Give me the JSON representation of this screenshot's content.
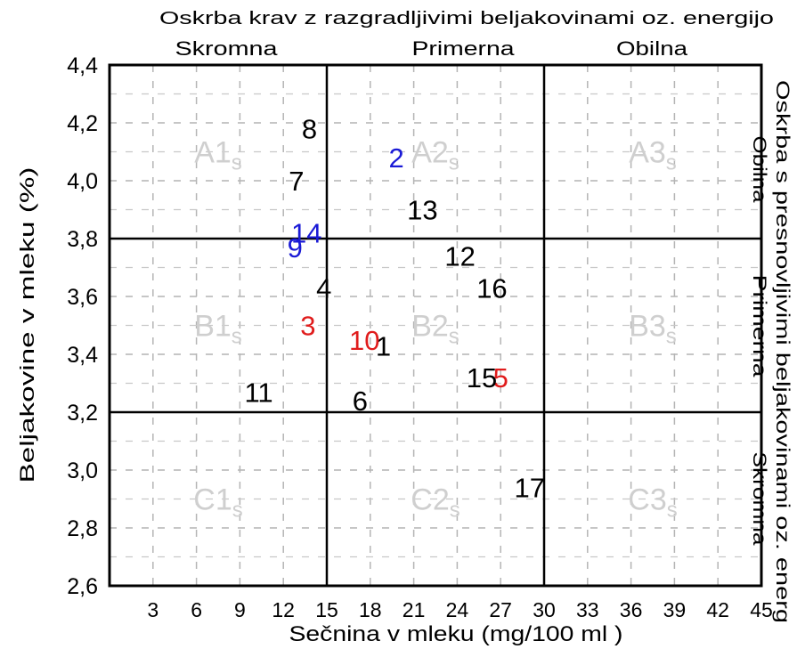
{
  "chart_data": {
    "type": "scatter",
    "title": "Oskrba krav z razgradljivimi beljakovinami oz. energijo",
    "top_zone_labels": [
      "Skromna",
      "Primerna",
      "Obilna"
    ],
    "right_title": "Oskrba s presnovljivimi beljakovinami oz. energ",
    "right_zone_labels": [
      "Obilna",
      "Primerna",
      "Skromna"
    ],
    "xlabel": "Sečnina v mleku (mg/100 ml )",
    "ylabel": "Beljakovine v mleku (%)",
    "xlim": [
      0,
      45
    ],
    "ylim": [
      2.6,
      4.4
    ],
    "x_ticks": [
      "3",
      "6",
      "9",
      "12",
      "15",
      "18",
      "21",
      "24",
      "27",
      "30",
      "33",
      "36",
      "39",
      "42",
      "45"
    ],
    "y_ticks": [
      "2,6",
      "2,8",
      "3,0",
      "3,2",
      "3,4",
      "3,6",
      "3,8",
      "4,0",
      "4,2",
      "4,4"
    ],
    "grid": true,
    "divider_lines": {
      "x": [
        15,
        30
      ],
      "y": [
        3.2,
        3.8
      ]
    },
    "zones": [
      {
        "label": "A1",
        "sub": "s",
        "x": 7.5,
        "y": 4.1
      },
      {
        "label": "A2",
        "sub": "s",
        "x": 22.5,
        "y": 4.1
      },
      {
        "label": "A3",
        "sub": "s",
        "x": 37.5,
        "y": 4.1
      },
      {
        "label": "B1",
        "sub": "s",
        "x": 7.5,
        "y": 3.5
      },
      {
        "label": "B2",
        "sub": "s",
        "x": 22.5,
        "y": 3.5
      },
      {
        "label": "B3",
        "sub": "s",
        "x": 37.5,
        "y": 3.5
      },
      {
        "label": "C1",
        "sub": "s",
        "x": 7.5,
        "y": 2.9
      },
      {
        "label": "C2",
        "sub": "s",
        "x": 22.5,
        "y": 2.9
      },
      {
        "label": "C3",
        "sub": "s",
        "x": 37.5,
        "y": 2.9
      }
    ],
    "points": [
      {
        "label": "1",
        "x": 18.9,
        "y": 3.43,
        "color": "#000000"
      },
      {
        "label": "2",
        "x": 19.8,
        "y": 4.08,
        "color": "#1a1ad6"
      },
      {
        "label": "3",
        "x": 13.7,
        "y": 3.5,
        "color": "#e01c1c"
      },
      {
        "label": "4",
        "x": 14.8,
        "y": 3.63,
        "color": "#000000"
      },
      {
        "label": "5",
        "x": 27.0,
        "y": 3.32,
        "color": "#e01c1c"
      },
      {
        "label": "6",
        "x": 17.3,
        "y": 3.24,
        "color": "#000000"
      },
      {
        "label": "7",
        "x": 12.9,
        "y": 4.0,
        "color": "#000000"
      },
      {
        "label": "8",
        "x": 13.8,
        "y": 4.18,
        "color": "#000000"
      },
      {
        "label": "9",
        "x": 12.8,
        "y": 3.77,
        "color": "#1a1ad6"
      },
      {
        "label": "10",
        "x": 17.6,
        "y": 3.45,
        "color": "#e01c1c"
      },
      {
        "label": "11",
        "x": 10.3,
        "y": 3.27,
        "color": "#000000"
      },
      {
        "label": "12",
        "x": 24.2,
        "y": 3.74,
        "color": "#000000"
      },
      {
        "label": "13",
        "x": 21.6,
        "y": 3.9,
        "color": "#000000"
      },
      {
        "label": "14",
        "x": 13.6,
        "y": 3.82,
        "color": "#1a1ad6"
      },
      {
        "label": "15",
        "x": 25.7,
        "y": 3.32,
        "color": "#000000"
      },
      {
        "label": "16",
        "x": 26.4,
        "y": 3.63,
        "color": "#000000"
      },
      {
        "label": "17",
        "x": 29.0,
        "y": 2.94,
        "color": "#000000"
      }
    ]
  }
}
